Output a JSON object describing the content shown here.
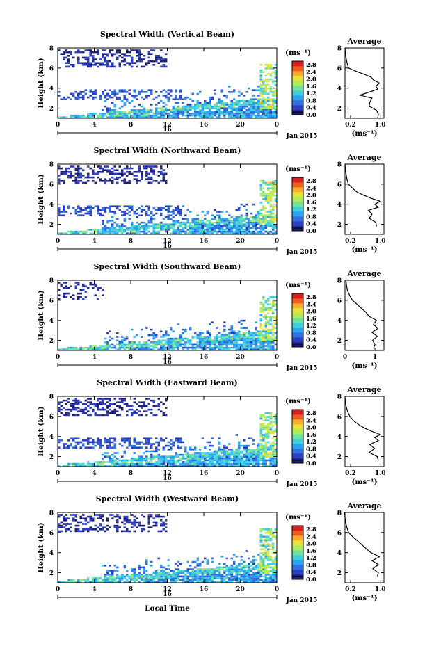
{
  "figure": {
    "xlabel_bottom": "Local Time",
    "date_label": "Jan 2015",
    "day_label": "16",
    "unit_label": "(ms⁻¹)"
  },
  "colormap": [
    "#1f1f7a",
    "#2b3fbf",
    "#2f6fe0",
    "#2aa4ef",
    "#3fd0dc",
    "#6fe39c",
    "#b0ec5a",
    "#e6e23a",
    "#f7ad2a",
    "#ef5a1d",
    "#d61f1f"
  ],
  "chart_data": [
    {
      "type": "heatmap",
      "title": "Spectral Width (Vertical Beam)",
      "xlabel": "",
      "ylabel": "Height (km)",
      "x_ticks": [
        "0",
        "4",
        "8",
        "12",
        "16",
        "20",
        "0"
      ],
      "xlim": [
        0,
        24
      ],
      "y_ticks": [
        "2",
        "4",
        "6",
        "8"
      ],
      "ylim": [
        1,
        8
      ],
      "colorbar": {
        "label": "(ms⁻¹)",
        "ticks": [
          "0.0",
          "0.4",
          "0.8",
          "1.2",
          "1.6",
          "2.0",
          "2.4",
          "2.8"
        ],
        "range": [
          0.0,
          3.0
        ]
      },
      "average_profile": {
        "title": "Average",
        "xlabel": "(ms⁻¹)",
        "x_ticks": [
          "0.2",
          "1.0"
        ],
        "xlim": [
          0.05,
          1.1
        ],
        "y_ticks": [
          "2",
          "4",
          "6",
          "8"
        ],
        "ylim": [
          1,
          8
        ],
        "points": [
          [
            0.93,
            1.0
          ],
          [
            0.95,
            1.4
          ],
          [
            0.9,
            1.8
          ],
          [
            0.7,
            2.2
          ],
          [
            0.72,
            2.6
          ],
          [
            0.78,
            3.0
          ],
          [
            0.45,
            3.3
          ],
          [
            0.7,
            3.6
          ],
          [
            0.93,
            3.9
          ],
          [
            0.88,
            4.2
          ],
          [
            0.98,
            4.5
          ],
          [
            0.82,
            4.8
          ],
          [
            0.75,
            5.1
          ],
          [
            0.55,
            5.4
          ],
          [
            0.33,
            5.7
          ],
          [
            0.15,
            6.0
          ],
          [
            0.12,
            6.3
          ],
          [
            0.1,
            6.6
          ],
          [
            0.08,
            7.0
          ],
          [
            0.06,
            7.5
          ],
          [
            0.05,
            8.0
          ]
        ]
      }
    },
    {
      "type": "heatmap",
      "title": "Spectral Width (Northward Beam)",
      "xlabel": "",
      "ylabel": "Height (km)",
      "x_ticks": [
        "0",
        "4",
        "8",
        "12",
        "16",
        "20",
        "0"
      ],
      "xlim": [
        0,
        24
      ],
      "y_ticks": [
        "2",
        "4",
        "6",
        "8"
      ],
      "ylim": [
        1,
        8
      ],
      "colorbar": {
        "label": "(ms⁻¹)",
        "ticks": [
          "0.0",
          "0.4",
          "0.8",
          "1.2",
          "1.6",
          "2.0",
          "2.4",
          "2.8"
        ],
        "range": [
          0.0,
          3.0
        ]
      },
      "average_profile": {
        "title": "Average",
        "xlabel": "(ms⁻¹)",
        "x_ticks": [
          "0.2",
          "1.0"
        ],
        "xlim": [
          0.05,
          1.1
        ],
        "y_ticks": [
          "2",
          "4",
          "6",
          "8"
        ],
        "ylim": [
          1,
          8
        ],
        "points": [
          [
            0.9,
            1.8
          ],
          [
            0.88,
            2.2
          ],
          [
            0.7,
            2.6
          ],
          [
            0.78,
            3.0
          ],
          [
            0.68,
            3.4
          ],
          [
            0.95,
            3.7
          ],
          [
            0.85,
            4.0
          ],
          [
            1.0,
            4.3
          ],
          [
            0.75,
            4.6
          ],
          [
            0.55,
            4.9
          ],
          [
            0.38,
            5.2
          ],
          [
            0.25,
            5.6
          ],
          [
            0.14,
            6.0
          ],
          [
            0.1,
            6.5
          ],
          [
            0.08,
            7.0
          ],
          [
            0.06,
            7.5
          ],
          [
            0.05,
            8.0
          ]
        ]
      }
    },
    {
      "type": "heatmap",
      "title": "Spectral Width (Southward Beam)",
      "xlabel": "",
      "ylabel": "Height (km)",
      "x_ticks": [
        "0",
        "4",
        "8",
        "12",
        "16",
        "20",
        "0"
      ],
      "xlim": [
        0,
        24
      ],
      "y_ticks": [
        "2",
        "4",
        "6",
        "8"
      ],
      "ylim": [
        1,
        8
      ],
      "colorbar": {
        "label": "(ms⁻¹)",
        "ticks": [
          "0.0",
          "0.4",
          "0.8",
          "1.2",
          "1.6",
          "2.0",
          "2.4",
          "2.8"
        ],
        "range": [
          0.0,
          3.0
        ]
      },
      "average_profile": {
        "title": "Average",
        "xlabel": "(ms⁻¹)",
        "x_ticks": [
          "0",
          "1"
        ],
        "xlim": [
          0,
          1.3
        ],
        "y_ticks": [
          "2",
          "4",
          "6",
          "8"
        ],
        "ylim": [
          1,
          8
        ],
        "points": [
          [
            0.95,
            1.2
          ],
          [
            1.0,
            1.6
          ],
          [
            0.92,
            2.0
          ],
          [
            1.08,
            2.4
          ],
          [
            0.9,
            2.8
          ],
          [
            1.1,
            3.2
          ],
          [
            0.95,
            3.6
          ],
          [
            1.05,
            4.0
          ],
          [
            0.8,
            4.4
          ],
          [
            0.7,
            4.8
          ],
          [
            0.55,
            5.2
          ],
          [
            0.4,
            5.6
          ],
          [
            0.25,
            6.0
          ],
          [
            0.15,
            6.5
          ],
          [
            0.08,
            7.0
          ],
          [
            0.05,
            7.5
          ],
          [
            0.03,
            8.0
          ]
        ]
      }
    },
    {
      "type": "heatmap",
      "title": "Spectral Width (Eastward Beam)",
      "xlabel": "",
      "ylabel": "Height (km)",
      "x_ticks": [
        "0",
        "4",
        "8",
        "12",
        "16",
        "20",
        "0"
      ],
      "xlim": [
        0,
        24
      ],
      "y_ticks": [
        "2",
        "4",
        "6",
        "8"
      ],
      "ylim": [
        1,
        8
      ],
      "colorbar": {
        "label": "(ms⁻¹)",
        "ticks": [
          "0.0",
          "0.4",
          "0.8",
          "1.2",
          "1.6",
          "2.0",
          "2.4",
          "2.8"
        ],
        "range": [
          0.0,
          3.0
        ]
      },
      "average_profile": {
        "title": "Average",
        "xlabel": "(ms⁻¹)",
        "x_ticks": [
          "0.2",
          "1.0"
        ],
        "xlim": [
          0.05,
          1.1
        ],
        "y_ticks": [
          "2",
          "4",
          "6",
          "8"
        ],
        "ylim": [
          1,
          8
        ],
        "points": [
          [
            0.95,
            1.6
          ],
          [
            0.92,
            2.0
          ],
          [
            0.7,
            2.4
          ],
          [
            0.85,
            2.8
          ],
          [
            0.72,
            3.2
          ],
          [
            0.95,
            3.6
          ],
          [
            0.85,
            3.9
          ],
          [
            1.0,
            4.2
          ],
          [
            0.78,
            4.5
          ],
          [
            0.6,
            4.8
          ],
          [
            0.45,
            5.1
          ],
          [
            0.3,
            5.5
          ],
          [
            0.18,
            6.0
          ],
          [
            0.12,
            6.5
          ],
          [
            0.08,
            7.0
          ],
          [
            0.06,
            7.5
          ],
          [
            0.05,
            8.0
          ]
        ]
      }
    },
    {
      "type": "heatmap",
      "title": "Spectral Width (Westward Beam)",
      "xlabel": "",
      "ylabel": "Height (km)",
      "x_ticks": [
        "0",
        "4",
        "8",
        "12",
        "16",
        "20",
        "0"
      ],
      "xlim": [
        0,
        24
      ],
      "y_ticks": [
        "2",
        "4",
        "6",
        "8"
      ],
      "ylim": [
        1,
        8
      ],
      "colorbar": {
        "label": "(ms⁻¹)",
        "ticks": [
          "0.0",
          "0.4",
          "0.8",
          "1.2",
          "1.6",
          "2.0",
          "2.4",
          "2.8"
        ],
        "range": [
          0.0,
          3.0
        ]
      },
      "average_profile": {
        "title": "Average",
        "xlabel": "(ms⁻¹)",
        "x_ticks": [
          "0.2",
          "1.0"
        ],
        "xlim": [
          0.05,
          1.1
        ],
        "y_ticks": [
          "2",
          "4",
          "6",
          "8"
        ],
        "ylim": [
          1,
          8
        ],
        "points": [
          [
            0.92,
            1.6
          ],
          [
            0.95,
            2.0
          ],
          [
            0.8,
            2.4
          ],
          [
            0.95,
            2.8
          ],
          [
            0.78,
            3.2
          ],
          [
            0.98,
            3.6
          ],
          [
            0.75,
            4.0
          ],
          [
            0.62,
            4.4
          ],
          [
            0.5,
            4.8
          ],
          [
            0.38,
            5.2
          ],
          [
            0.25,
            5.6
          ],
          [
            0.15,
            6.0
          ],
          [
            0.1,
            6.5
          ],
          [
            0.07,
            7.0
          ],
          [
            0.05,
            7.5
          ],
          [
            0.04,
            8.0
          ]
        ]
      }
    }
  ]
}
